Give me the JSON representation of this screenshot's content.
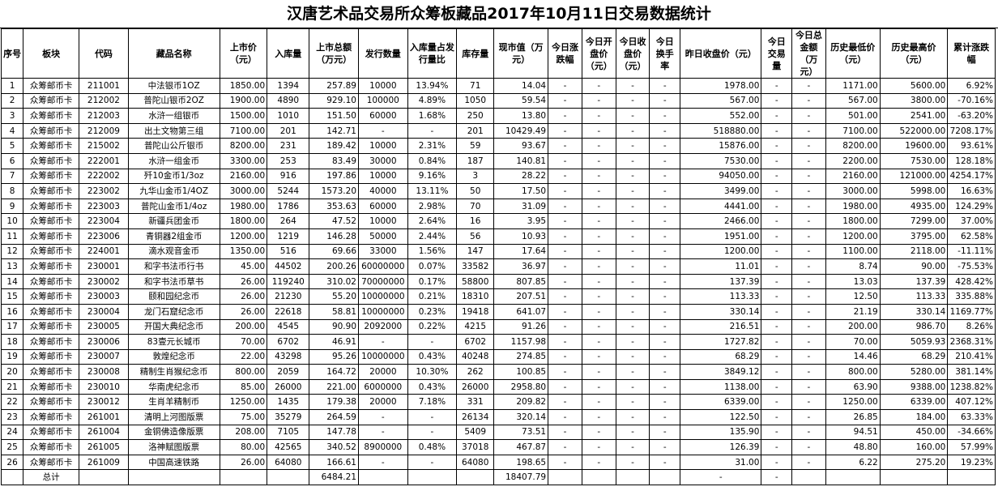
{
  "title": "汉唐艺术品交易所众筹板藏品2017年10月11日交易数据统计",
  "headers": [
    "序号",
    "板块",
    "代码",
    "藏品名称",
    "上市价（元）",
    "入库量",
    "上市总额（万元）",
    "发行数量",
    "入库量占发行量比",
    "库存量",
    "现市值（万元）",
    "今日涨跌幅",
    "今日开盘价（元）",
    "今日收盘价（元）",
    "今日换手率",
    "昨日收盘价（元）",
    "今日交易量",
    "今日总金额（万元）",
    "历史最低价（元）",
    "历史最高价（元）",
    "累计涨跌幅"
  ],
  "rows": [
    [
      "1",
      "众筹邮币卡",
      "211001",
      "中法银币1OZ",
      "1850.00",
      "1394",
      "257.89",
      "10000",
      "13.94%",
      "71",
      "14.04",
      "-",
      "-",
      "-",
      "-",
      "1978.00",
      "-",
      "-",
      "1171.00",
      "5600.00",
      "6.92%"
    ],
    [
      "2",
      "众筹邮币卡",
      "212002",
      "普陀山银币2OZ",
      "1900.00",
      "4890",
      "929.10",
      "100000",
      "4.89%",
      "1050",
      "59.54",
      "-",
      "-",
      "-",
      "-",
      "567.00",
      "-",
      "-",
      "567.00",
      "3800.00",
      "-70.16%"
    ],
    [
      "3",
      "众筹邮币卡",
      "212003",
      "水浒一组银币",
      "1500.00",
      "1010",
      "151.50",
      "60000",
      "1.68%",
      "250",
      "13.80",
      "-",
      "-",
      "-",
      "-",
      "552.00",
      "-",
      "-",
      "501.00",
      "2541.00",
      "-63.20%"
    ],
    [
      "4",
      "众筹邮币卡",
      "212009",
      "出土文物第三组",
      "7100.00",
      "201",
      "142.71",
      "-",
      "-",
      "201",
      "10429.49",
      "-",
      "-",
      "-",
      "-",
      "518880.00",
      "-",
      "-",
      "7100.00",
      "522000.00",
      "7208.17%"
    ],
    [
      "5",
      "众筹邮币卡",
      "215002",
      "普陀山公斤银币",
      "8200.00",
      "231",
      "189.42",
      "10000",
      "2.31%",
      "59",
      "93.67",
      "-",
      "-",
      "-",
      "-",
      "15876.00",
      "-",
      "-",
      "8200.00",
      "19600.00",
      "93.61%"
    ],
    [
      "6",
      "众筹邮币卡",
      "222001",
      "水浒一组金币",
      "3300.00",
      "253",
      "83.49",
      "30000",
      "0.84%",
      "187",
      "140.81",
      "-",
      "-",
      "-",
      "-",
      "7530.00",
      "-",
      "-",
      "2200.00",
      "7530.00",
      "128.18%"
    ],
    [
      "7",
      "众筹邮币卡",
      "222002",
      "歼10金币1/3oz",
      "2160.00",
      "916",
      "197.86",
      "10000",
      "9.16%",
      "3",
      "28.22",
      "-",
      "-",
      "-",
      "-",
      "94050.00",
      "-",
      "-",
      "2160.00",
      "121000.00",
      "4254.17%"
    ],
    [
      "8",
      "众筹邮币卡",
      "223002",
      "九华山金币1/4OZ",
      "3000.00",
      "5244",
      "1573.20",
      "40000",
      "13.11%",
      "50",
      "17.50",
      "-",
      "-",
      "-",
      "-",
      "3499.00",
      "-",
      "-",
      "3000.00",
      "5998.00",
      "16.63%"
    ],
    [
      "9",
      "众筹邮币卡",
      "223003",
      "普陀山金币1/4oz",
      "1980.00",
      "1786",
      "353.63",
      "60000",
      "2.98%",
      "70",
      "31.09",
      "-",
      "-",
      "-",
      "-",
      "4441.00",
      "-",
      "-",
      "1980.00",
      "4935.00",
      "124.29%"
    ],
    [
      "10",
      "众筹邮币卡",
      "223004",
      "新疆兵团金币",
      "1800.00",
      "264",
      "47.52",
      "10000",
      "2.64%",
      "16",
      "3.95",
      "-",
      "-",
      "-",
      "-",
      "2466.00",
      "-",
      "-",
      "1800.00",
      "7299.00",
      "37.00%"
    ],
    [
      "11",
      "众筹邮币卡",
      "223006",
      "青铜器2组金币",
      "1200.00",
      "1219",
      "146.28",
      "50000",
      "2.44%",
      "56",
      "10.93",
      "-",
      "-",
      "-",
      "-",
      "1951.00",
      "-",
      "-",
      "1200.00",
      "3795.00",
      "62.58%"
    ],
    [
      "12",
      "众筹邮币卡",
      "224001",
      "滴水观音金币",
      "1350.00",
      "516",
      "69.66",
      "33000",
      "1.56%",
      "147",
      "17.64",
      "-",
      "-",
      "-",
      "-",
      "1200.00",
      "-",
      "-",
      "1100.00",
      "2118.00",
      "-11.11%"
    ],
    [
      "13",
      "众筹邮币卡",
      "230001",
      "和字书法币行书",
      "45.00",
      "44502",
      "200.26",
      "60000000",
      "0.07%",
      "33582",
      "36.97",
      "-",
      "-",
      "-",
      "-",
      "11.01",
      "-",
      "-",
      "8.74",
      "90.00",
      "-75.53%"
    ],
    [
      "14",
      "众筹邮币卡",
      "230002",
      "和字书法币草书",
      "26.00",
      "119240",
      "310.02",
      "70000000",
      "0.17%",
      "58800",
      "807.85",
      "-",
      "-",
      "-",
      "-",
      "137.39",
      "-",
      "-",
      "13.03",
      "137.39",
      "428.42%"
    ],
    [
      "15",
      "众筹邮币卡",
      "230003",
      "颐和园纪念币",
      "26.00",
      "21230",
      "55.20",
      "10000000",
      "0.21%",
      "18310",
      "207.51",
      "-",
      "-",
      "-",
      "-",
      "113.33",
      "-",
      "-",
      "12.50",
      "113.33",
      "335.88%"
    ],
    [
      "16",
      "众筹邮币卡",
      "230004",
      "龙门石窟纪念币",
      "26.00",
      "22618",
      "58.81",
      "10000000",
      "0.23%",
      "19418",
      "641.07",
      "-",
      "-",
      "-",
      "-",
      "330.14",
      "-",
      "-",
      "21.19",
      "330.14",
      "1169.77%"
    ],
    [
      "17",
      "众筹邮币卡",
      "230005",
      "开国大典纪念币",
      "200.00",
      "4545",
      "90.90",
      "2092000",
      "0.22%",
      "4215",
      "91.26",
      "-",
      "-",
      "-",
      "-",
      "216.51",
      "-",
      "-",
      "200.00",
      "986.70",
      "8.26%"
    ],
    [
      "18",
      "众筹邮币卡",
      "230006",
      "83壹元长城币",
      "70.00",
      "6702",
      "46.91",
      "-",
      "-",
      "6702",
      "1157.98",
      "-",
      "-",
      "-",
      "-",
      "1727.82",
      "-",
      "-",
      "70.00",
      "5059.93",
      "2368.31%"
    ],
    [
      "19",
      "众筹邮币卡",
      "230007",
      "敦煌纪念币",
      "22.00",
      "43298",
      "95.26",
      "10000000",
      "0.43%",
      "40248",
      "274.85",
      "-",
      "-",
      "-",
      "-",
      "68.29",
      "-",
      "-",
      "14.46",
      "68.29",
      "210.41%"
    ],
    [
      "20",
      "众筹邮币卡",
      "230008",
      "精制生肖猴纪念币",
      "800.00",
      "2059",
      "164.72",
      "20000",
      "10.30%",
      "262",
      "100.85",
      "-",
      "-",
      "-",
      "-",
      "3849.12",
      "-",
      "-",
      "800.00",
      "5280.00",
      "381.14%"
    ],
    [
      "21",
      "众筹邮币卡",
      "230010",
      "华南虎纪念币",
      "85.00",
      "26000",
      "221.00",
      "6000000",
      "0.43%",
      "26000",
      "2958.80",
      "-",
      "-",
      "-",
      "-",
      "1138.00",
      "-",
      "-",
      "63.90",
      "9388.00",
      "1238.82%"
    ],
    [
      "22",
      "众筹邮币卡",
      "230012",
      "生肖羊精制币",
      "1250.00",
      "1435",
      "179.38",
      "20000",
      "7.18%",
      "331",
      "209.82",
      "-",
      "-",
      "-",
      "-",
      "6339.00",
      "-",
      "-",
      "1250.00",
      "6339.00",
      "407.12%"
    ],
    [
      "23",
      "众筹邮币卡",
      "261001",
      "清明上河图版票",
      "75.00",
      "35279",
      "264.59",
      "-",
      "-",
      "26134",
      "320.14",
      "-",
      "-",
      "-",
      "-",
      "122.50",
      "-",
      "-",
      "26.85",
      "184.00",
      "63.33%"
    ],
    [
      "24",
      "众筹邮币卡",
      "261004",
      "金铜佛造像版票",
      "208.00",
      "7105",
      "147.78",
      "-",
      "-",
      "5409",
      "73.51",
      "-",
      "-",
      "-",
      "-",
      "135.90",
      "-",
      "-",
      "94.51",
      "450.00",
      "-34.66%"
    ],
    [
      "25",
      "众筹邮币卡",
      "261005",
      "洛神赋图版票",
      "80.00",
      "42565",
      "340.52",
      "8900000",
      "0.48%",
      "37018",
      "467.87",
      "-",
      "-",
      "-",
      "-",
      "126.39",
      "-",
      "-",
      "48.80",
      "160.00",
      "57.99%"
    ],
    [
      "26",
      "众筹邮币卡",
      "261009",
      "中国高速铁路",
      "26.00",
      "64080",
      "166.61",
      "-",
      "-",
      "64080",
      "198.65",
      "-",
      "-",
      "-",
      "-",
      "31.00",
      "-",
      "-",
      "6.22",
      "275.20",
      "19.23%"
    ]
  ],
  "total": {
    "label": "总计",
    "issue_total": "6484.21",
    "market_total": "18407.79",
    "dash": "-"
  }
}
